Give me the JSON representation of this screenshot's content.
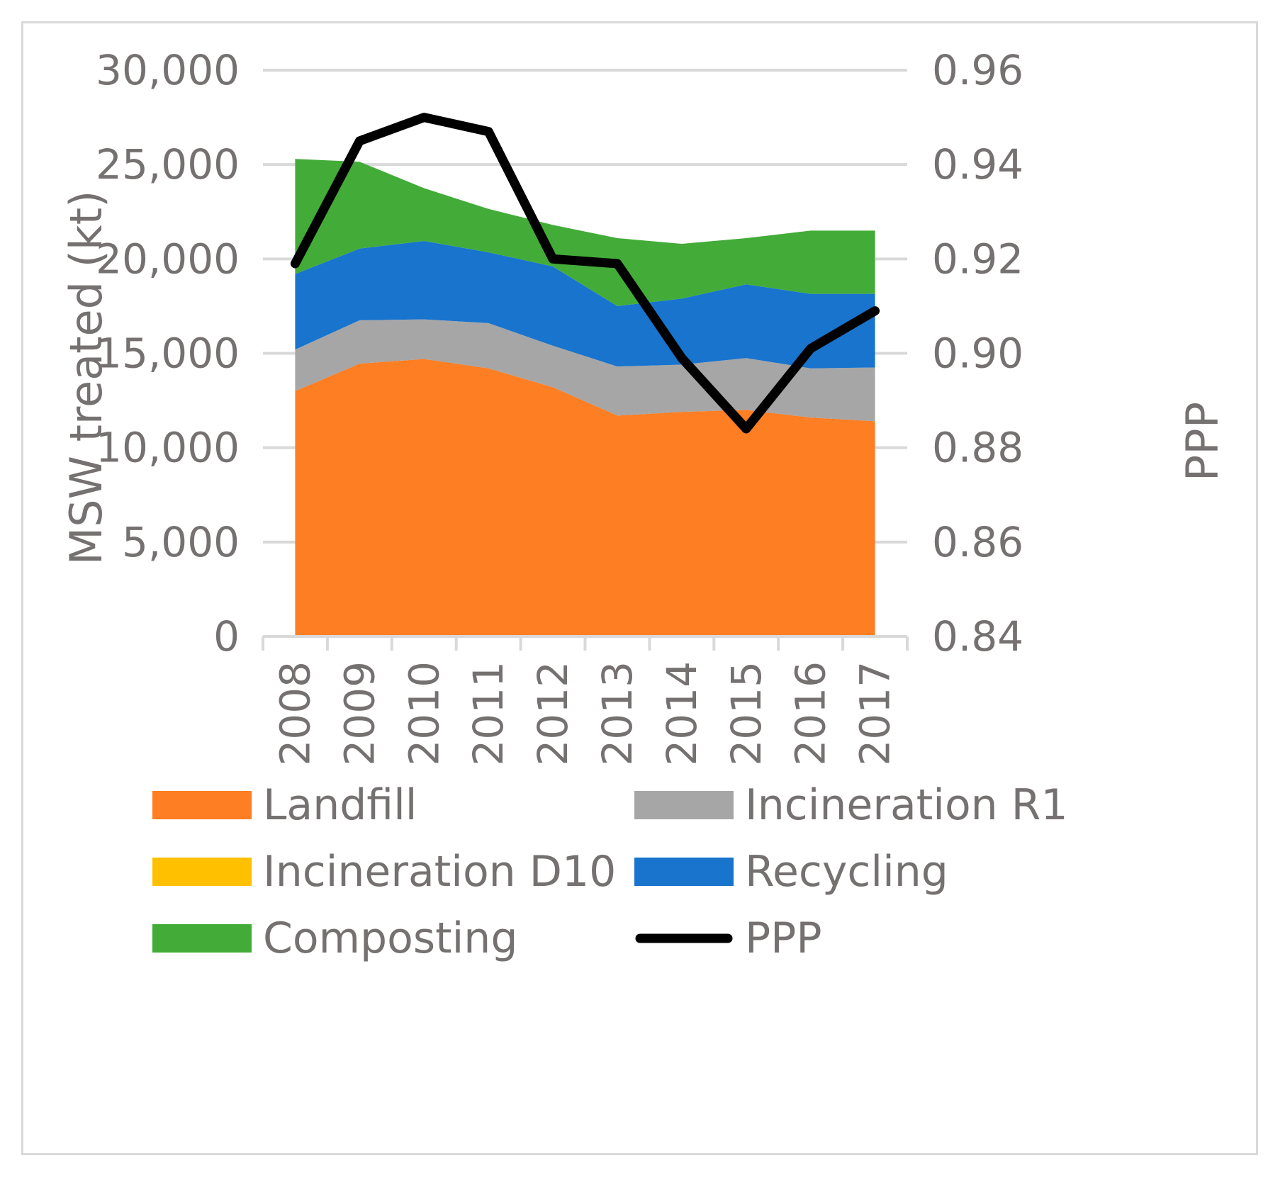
{
  "chart_data": {
    "type": "area",
    "stacked": true,
    "categories": [
      "2008",
      "2009",
      "2010",
      "2011",
      "2012",
      "2013",
      "2014",
      "2015",
      "2016",
      "2017"
    ],
    "series": [
      {
        "name": "Landfill",
        "color": "#fd7e23",
        "values": [
          13000,
          14450,
          14700,
          14200,
          13200,
          11700,
          11900,
          12000,
          11600,
          11400
        ]
      },
      {
        "name": "Incineration R1",
        "color": "#a6a6a6",
        "values": [
          2200,
          2300,
          2100,
          2400,
          2200,
          2600,
          2500,
          2750,
          2600,
          2850
        ]
      },
      {
        "name": "Incineration D10",
        "color": "#ffc000",
        "values": [
          0,
          0,
          0,
          0,
          0,
          0,
          0,
          0,
          0,
          0
        ]
      },
      {
        "name": "Recycling",
        "color": "#1874cd",
        "values": [
          4000,
          3800,
          4150,
          3750,
          4200,
          3200,
          3500,
          3900,
          3950,
          3900
        ]
      },
      {
        "name": "Composting",
        "color": "#43ac39",
        "values": [
          6100,
          4600,
          2800,
          2300,
          2200,
          3600,
          2900,
          2450,
          3350,
          3350
        ]
      }
    ],
    "line_series": {
      "name": "PPP",
      "color": "#000000",
      "axis": "right",
      "values": [
        0.919,
        0.945,
        0.95,
        0.947,
        0.92,
        0.919,
        0.899,
        0.884,
        0.901,
        0.909
      ]
    },
    "y_left": {
      "label": "MSW treated (kt)",
      "range": [
        0,
        30000
      ],
      "ticks": [
        "0",
        "5,000",
        "10,000",
        "15,000",
        "20,000",
        "25,000",
        "30,000"
      ]
    },
    "y_right": {
      "label": "PPP",
      "range": [
        0.84,
        0.96
      ],
      "ticks": [
        "0.84",
        "0.86",
        "0.88",
        "0.90",
        "0.92",
        "0.94",
        "0.96"
      ]
    },
    "grid": true,
    "legend_position": "bottom"
  }
}
